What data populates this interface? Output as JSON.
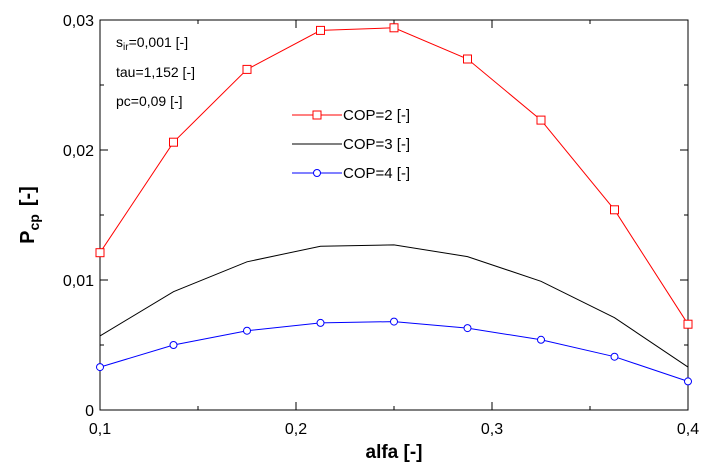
{
  "chart_data": {
    "type": "line",
    "xlabel": "alfa [-]",
    "ylabel": {
      "main": "P",
      "sub": "cp",
      "unit": "[-]"
    },
    "xlim": [
      0.1,
      0.4
    ],
    "ylim": [
      0,
      0.03
    ],
    "xticks": [
      "0,1",
      "0,2",
      "0,3",
      "0,4"
    ],
    "yticks": [
      "0",
      "0,01",
      "0,02",
      "0,03"
    ],
    "grid": false,
    "legend_position": "top-center",
    "x": [
      0.1,
      0.1375,
      0.175,
      0.2125,
      0.25,
      0.2875,
      0.325,
      0.3625,
      0.4
    ],
    "series": [
      {
        "name": "COP=2 [-]",
        "color": "#ff0000",
        "marker": "square",
        "values": [
          0.0121,
          0.0206,
          0.0262,
          0.0292,
          0.0294,
          0.027,
          0.0223,
          0.0154,
          0.0066
        ]
      },
      {
        "name": "COP=3 [-]",
        "color": "#000000",
        "marker": "none",
        "values": [
          0.0057,
          0.0091,
          0.0114,
          0.0126,
          0.0127,
          0.0118,
          0.0099,
          0.0071,
          0.0033
        ]
      },
      {
        "name": "COP=4 [-]",
        "color": "#0000ff",
        "marker": "circle",
        "values": [
          0.0033,
          0.005,
          0.0061,
          0.0067,
          0.0068,
          0.0063,
          0.0054,
          0.0041,
          0.0022
        ]
      }
    ],
    "annotations": [
      {
        "main": "s",
        "sub": "ir",
        "rest": "=0,001 [-]"
      },
      {
        "main": "tau=1,152 [-]",
        "sub": "",
        "rest": ""
      },
      {
        "main": "pc=0,09 [-]",
        "sub": "",
        "rest": ""
      }
    ]
  }
}
